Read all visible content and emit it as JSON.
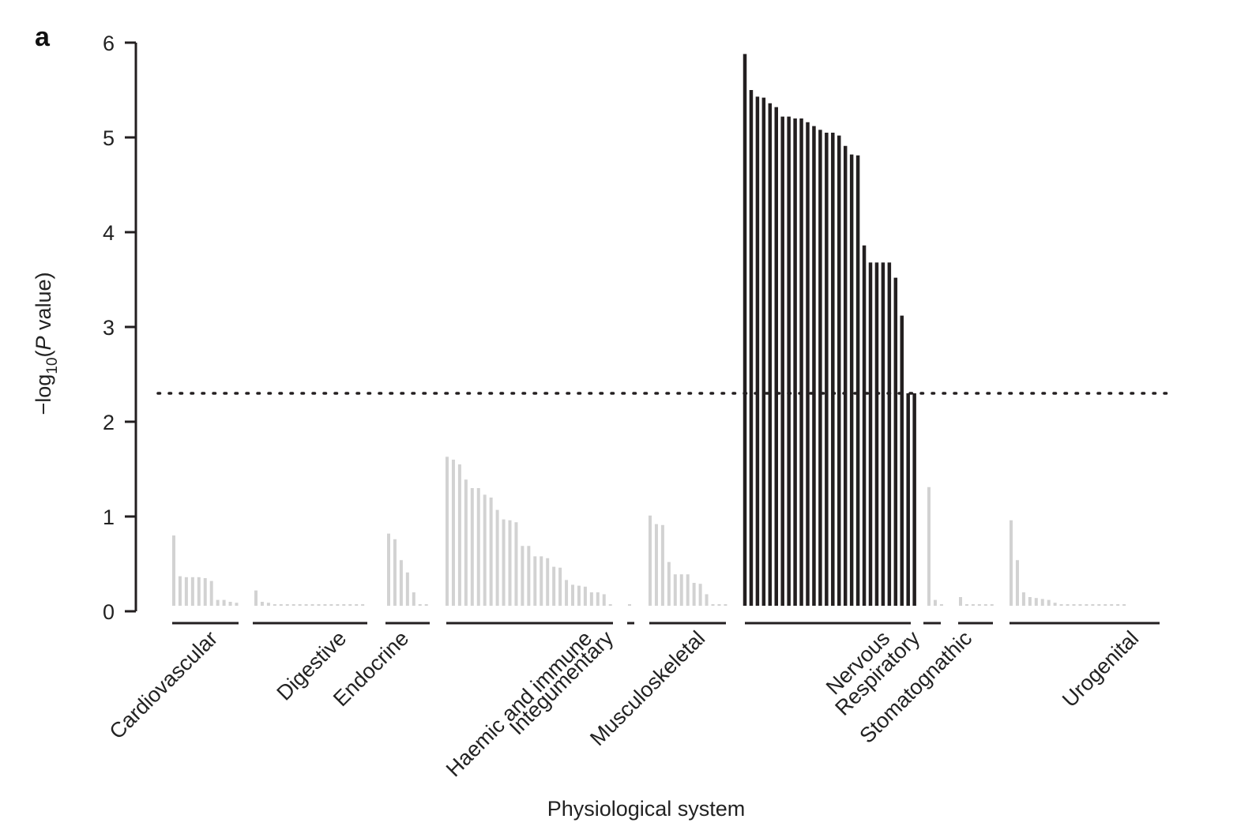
{
  "chart_data": {
    "type": "bar",
    "panel_label": "a",
    "title": "",
    "xlabel": "Physiological system",
    "ylabel_parts": {
      "prefix": "−log",
      "subscript": "10",
      "open": "(",
      "italic": "P",
      "rest": " value)"
    },
    "ylim": [
      0,
      6
    ],
    "yticks": [
      0,
      1,
      2,
      3,
      4,
      5,
      6
    ],
    "threshold": {
      "value": 2.3,
      "style": "dotted"
    },
    "colors": {
      "significant": "#231f20",
      "nonsignificant": "#d2d2d2",
      "axis": "#231f20"
    },
    "groups": [
      {
        "name": "Cardiovascular",
        "significant": false,
        "values": [
          0.8,
          0.37,
          0.36,
          0.36,
          0.36,
          0.35,
          0.32,
          0.12,
          0.12,
          0.1,
          0.09
        ]
      },
      {
        "name": "Digestive",
        "significant": false,
        "values": [
          0.22,
          0.1,
          0.09,
          0.05,
          0.04,
          0.03,
          0.02,
          0.02,
          0.02,
          0.02,
          0.02,
          0.01,
          0.01,
          0.01,
          0.01,
          0.01,
          0.01,
          0.01
        ]
      },
      {
        "name": "Endocrine",
        "significant": false,
        "values": [
          0.82,
          0.76,
          0.54,
          0.41,
          0.2,
          0.05,
          0.03
        ]
      },
      {
        "name": "Haemic and immune",
        "significant": false,
        "values": [
          1.63,
          1.6,
          1.55,
          1.39,
          1.3,
          1.3,
          1.23,
          1.2,
          1.07,
          0.97,
          0.96,
          0.94,
          0.69,
          0.69,
          0.58,
          0.58,
          0.56,
          0.47,
          0.46,
          0.33,
          0.28,
          0.27,
          0.26,
          0.2,
          0.2,
          0.18,
          0.07
        ]
      },
      {
        "name": "Integumentary",
        "significant": false,
        "values": [
          0.02
        ]
      },
      {
        "name": "Musculoskeletal",
        "significant": false,
        "values": [
          1.01,
          0.92,
          0.91,
          0.52,
          0.39,
          0.39,
          0.39,
          0.3,
          0.29,
          0.18,
          0.02,
          0.02,
          0.02
        ]
      },
      {
        "name": "Nervous",
        "significant": true,
        "values": [
          5.88,
          5.5,
          5.43,
          5.42,
          5.36,
          5.32,
          5.22,
          5.22,
          5.2,
          5.2,
          5.16,
          5.12,
          5.08,
          5.05,
          5.05,
          5.02,
          4.91,
          4.82,
          4.81,
          3.86,
          3.68,
          3.68,
          3.68,
          3.68,
          3.52,
          3.12,
          2.3,
          2.3
        ]
      },
      {
        "name": "Respiratory",
        "significant": false,
        "values": [
          1.31,
          0.12,
          0.04
        ]
      },
      {
        "name": "Stomatognathic",
        "significant": false,
        "values": [
          0.15,
          0.05,
          0.02,
          0.01,
          0.01,
          0.01
        ]
      },
      {
        "name": "Urogenital",
        "significant": false,
        "values": [
          0.96,
          0.54,
          0.2,
          0.15,
          0.14,
          0.13,
          0.12,
          0.09,
          0.05,
          0.03,
          0.02,
          0.02,
          0.02,
          0.02,
          0.02,
          0.01,
          0.01,
          0.01,
          0.01
        ]
      }
    ],
    "grid": false,
    "legend": "none"
  }
}
